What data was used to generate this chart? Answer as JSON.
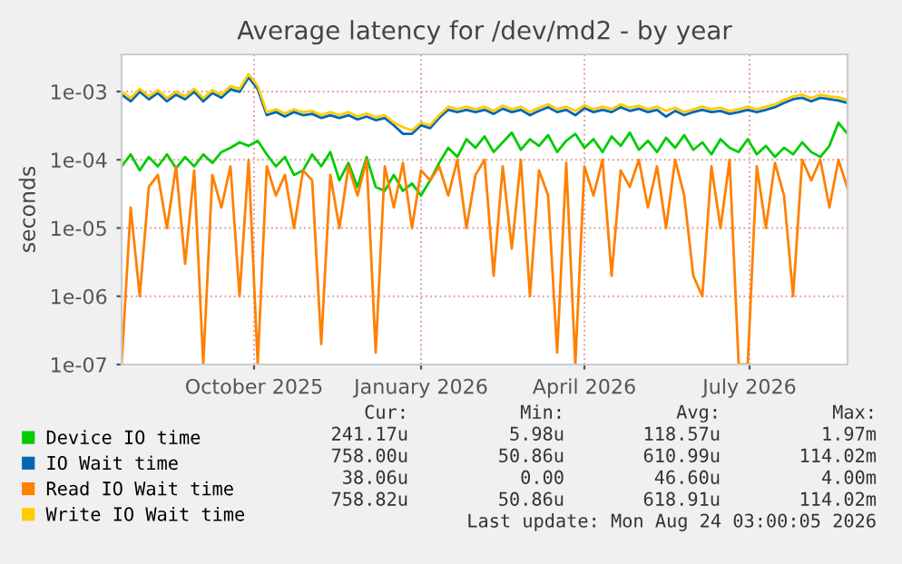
{
  "chart_data": {
    "type": "line",
    "title": "Average latency for /dev/md2 - by year",
    "ylabel": "seconds",
    "log": true,
    "grid": true,
    "legend": "bottom",
    "xlim": [
      "2025-07-20",
      "2026-08-24"
    ],
    "xticks": [
      {
        "value": "2025-10-01",
        "label": "October 2025"
      },
      {
        "value": "2026-01-01",
        "label": "January 2026"
      },
      {
        "value": "2026-04-01",
        "label": "April 2026"
      },
      {
        "value": "2026-07-01",
        "label": "July 2026"
      }
    ],
    "ylim": [
      1e-07,
      0.0035
    ],
    "yticks": [
      {
        "value": 1e-07,
        "label": "1e-07"
      },
      {
        "value": 1e-06,
        "label": "1e-06"
      },
      {
        "value": 1e-05,
        "label": "1e-05"
      },
      {
        "value": 0.0001,
        "label": "1e-04"
      },
      {
        "value": 0.001,
        "label": "1e-03"
      }
    ],
    "x": [
      "2025-07-20",
      "2025-07-25",
      "2025-07-30",
      "2025-08-04",
      "2025-08-09",
      "2025-08-14",
      "2025-08-19",
      "2025-08-24",
      "2025-08-29",
      "2025-09-03",
      "2025-09-08",
      "2025-09-13",
      "2025-09-18",
      "2025-09-23",
      "2025-09-28",
      "2025-10-03",
      "2025-10-08",
      "2025-10-13",
      "2025-10-18",
      "2025-10-23",
      "2025-10-28",
      "2025-11-02",
      "2025-11-07",
      "2025-11-12",
      "2025-11-17",
      "2025-11-22",
      "2025-11-27",
      "2025-12-02",
      "2025-12-07",
      "2025-12-12",
      "2025-12-17",
      "2025-12-22",
      "2025-12-27",
      "2026-01-01",
      "2026-01-06",
      "2026-01-11",
      "2026-01-16",
      "2026-01-21",
      "2026-01-26",
      "2026-01-31",
      "2026-02-05",
      "2026-02-10",
      "2026-02-15",
      "2026-02-20",
      "2026-02-25",
      "2026-03-02",
      "2026-03-07",
      "2026-03-12",
      "2026-03-17",
      "2026-03-22",
      "2026-03-27",
      "2026-04-01",
      "2026-04-06",
      "2026-04-11",
      "2026-04-16",
      "2026-04-21",
      "2026-04-26",
      "2026-05-01",
      "2026-05-06",
      "2026-05-11",
      "2026-05-16",
      "2026-05-21",
      "2026-05-26",
      "2026-05-31",
      "2026-06-05",
      "2026-06-10",
      "2026-06-15",
      "2026-06-20",
      "2026-06-25",
      "2026-06-30",
      "2026-07-05",
      "2026-07-10",
      "2026-07-15",
      "2026-07-20",
      "2026-07-25",
      "2026-07-30",
      "2026-08-04",
      "2026-08-09",
      "2026-08-14",
      "2026-08-19",
      "2026-08-24"
    ],
    "series": [
      {
        "name": "Device IO time",
        "color": "#00cc00",
        "values": [
          8e-05,
          0.00012,
          7e-05,
          0.00011,
          8e-05,
          0.00012,
          7.5e-05,
          0.00011,
          8e-05,
          0.00012,
          9e-05,
          0.00013,
          0.00015,
          0.00018,
          0.00016,
          0.00019,
          0.00012,
          8e-05,
          0.00011,
          6e-05,
          7e-05,
          0.00012,
          8e-05,
          0.00013,
          5e-05,
          9e-05,
          4e-05,
          0.00011,
          4e-05,
          3.5e-05,
          6e-05,
          3.5e-05,
          4.5e-05,
          3e-05,
          5e-05,
          9e-05,
          0.00015,
          0.00011,
          0.0002,
          0.00015,
          0.00022,
          0.00013,
          0.00018,
          0.00025,
          0.00014,
          0.0002,
          0.00016,
          0.00023,
          0.00013,
          0.00019,
          0.00024,
          0.00015,
          0.0002,
          0.00013,
          0.00022,
          0.00016,
          0.00025,
          0.00014,
          0.00019,
          0.00013,
          0.00021,
          0.00015,
          0.00023,
          0.00014,
          0.00018,
          0.00012,
          0.0002,
          0.00015,
          0.00013,
          0.0002,
          0.00012,
          0.00016,
          0.00011,
          0.00015,
          0.00012,
          0.00018,
          0.00013,
          0.00011,
          0.00016,
          0.00035,
          0.00024
        ]
      },
      {
        "name": "IO Wait time",
        "color": "#0066b3",
        "values": [
          0.0009,
          0.00072,
          0.00099,
          0.00077,
          0.00095,
          0.00072,
          0.0009,
          0.00077,
          0.00099,
          0.00072,
          0.00095,
          0.00081,
          0.00108,
          0.00099,
          0.00162,
          0.00108,
          0.00045,
          0.0005,
          0.00043,
          0.0005,
          0.00045,
          0.00047,
          0.00041,
          0.00045,
          0.00041,
          0.00045,
          0.00039,
          0.00043,
          0.00038,
          0.00041,
          0.00032,
          0.00024,
          0.00024,
          0.00032,
          0.00029,
          0.00041,
          0.00054,
          0.0005,
          0.00054,
          0.0005,
          0.00054,
          0.00047,
          0.00056,
          0.0005,
          0.00054,
          0.00045,
          0.00052,
          0.00059,
          0.0005,
          0.00054,
          0.00045,
          0.00057,
          0.0005,
          0.00054,
          0.0005,
          0.00059,
          0.00052,
          0.00056,
          0.0005,
          0.00054,
          0.00043,
          0.00052,
          0.00045,
          0.0005,
          0.00054,
          0.0005,
          0.00052,
          0.00047,
          0.0005,
          0.00054,
          0.0005,
          0.00054,
          0.00059,
          0.00068,
          0.00077,
          0.00081,
          0.00072,
          0.00081,
          0.00077,
          0.00074,
          0.00068
        ]
      },
      {
        "name": "Read IO Wait time",
        "color": "#ff8000",
        "values": [
          1e-07,
          2e-05,
          1e-06,
          4e-05,
          6e-05,
          1e-05,
          8e-05,
          3e-06,
          7e-05,
          1e-07,
          6e-05,
          2e-05,
          8e-05,
          1e-06,
          0.0001,
          1e-07,
          8e-05,
          3e-05,
          6e-05,
          1e-05,
          7e-05,
          5e-05,
          2e-07,
          6e-05,
          1e-05,
          8e-05,
          3e-05,
          0.0001,
          1.5e-07,
          8e-05,
          2e-05,
          9e-05,
          1e-05,
          7e-05,
          5e-05,
          8e-05,
          3e-05,
          0.0001,
          1e-05,
          6e-05,
          0.0001,
          2e-06,
          8e-05,
          5e-06,
          0.0001,
          1e-06,
          7e-05,
          3e-05,
          1.5e-07,
          9e-05,
          1e-07,
          8e-05,
          3e-05,
          0.0001,
          2e-06,
          7e-05,
          4e-05,
          0.0001,
          2e-05,
          8e-05,
          1e-05,
          0.0001,
          3e-05,
          2e-06,
          1e-06,
          8e-05,
          1e-05,
          0.0001,
          1e-07,
          1e-07,
          8e-05,
          1e-05,
          9e-05,
          3e-05,
          1e-06,
          0.0001,
          5e-05,
          0.0001,
          2e-05,
          0.0001,
          3.8e-05
        ]
      },
      {
        "name": "Write IO Wait time",
        "color": "#ffcc00",
        "values": [
          0.001,
          0.0008,
          0.0011,
          0.00085,
          0.00105,
          0.0008,
          0.001,
          0.00085,
          0.0011,
          0.0008,
          0.00105,
          0.0009,
          0.0012,
          0.0011,
          0.0018,
          0.0012,
          0.0005,
          0.00055,
          0.00048,
          0.00055,
          0.0005,
          0.00052,
          0.00045,
          0.0005,
          0.00045,
          0.0005,
          0.00043,
          0.00048,
          0.00042,
          0.00045,
          0.00035,
          0.0003,
          0.00027,
          0.00035,
          0.00032,
          0.00045,
          0.0006,
          0.00055,
          0.0006,
          0.00055,
          0.0006,
          0.00052,
          0.00062,
          0.00055,
          0.0006,
          0.0005,
          0.00058,
          0.00065,
          0.00055,
          0.0006,
          0.00052,
          0.00063,
          0.00055,
          0.0006,
          0.00055,
          0.00065,
          0.00058,
          0.00062,
          0.00055,
          0.0006,
          0.00052,
          0.00058,
          0.0005,
          0.00055,
          0.0006,
          0.00055,
          0.00058,
          0.00052,
          0.00055,
          0.0006,
          0.00055,
          0.0006,
          0.00065,
          0.00075,
          0.00085,
          0.0009,
          0.0008,
          0.0009,
          0.00085,
          0.00082,
          0.00076
        ]
      }
    ],
    "annotations": [
      "Cur:",
      "Min:",
      "Avg:",
      "Max:",
      "241.17u",
      "5.98u",
      "118.57u",
      "1.97m",
      "758.00u",
      "50.86u",
      "610.99u",
      "114.02m",
      "38.06u",
      "0.00",
      "46.60u",
      "4.00m",
      "758.82u",
      "50.86u",
      "618.91u",
      "114.02m",
      "Last update: Mon Aug 24 03:00:05 2026"
    ]
  }
}
